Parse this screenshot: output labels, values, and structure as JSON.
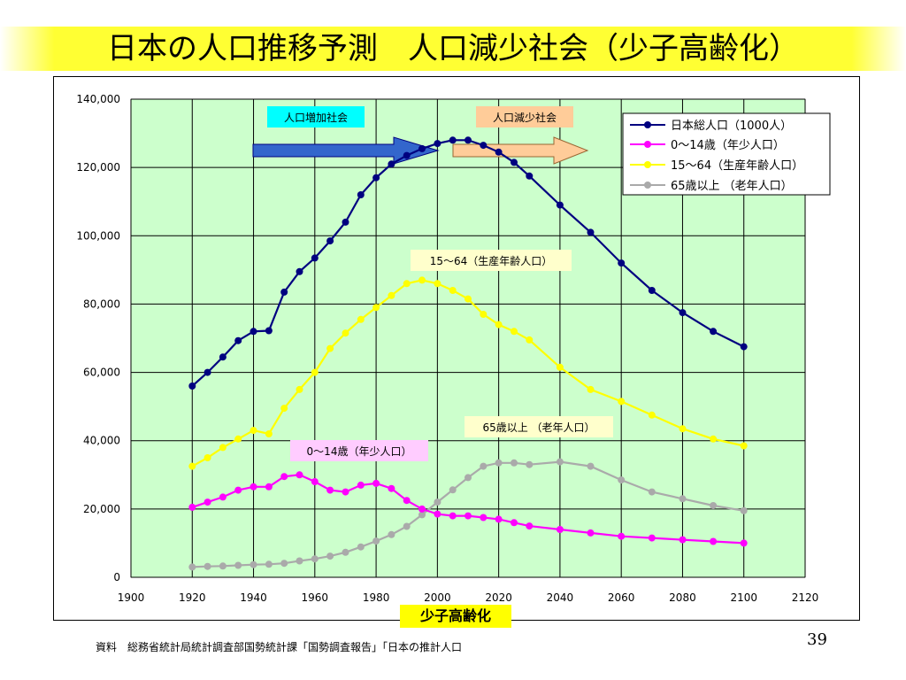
{
  "slide": {
    "title": "日本の人口推移予測　人口減少社会（少子高齢化）",
    "footer_tag": "少子高齢化",
    "source": "資料　総務省統計局統計調査部国勢統計課「国勢調査報告」「日本の推計人口",
    "page_number": "39"
  },
  "colors": {
    "plot_bg": "#ccffcc",
    "total": "#000080",
    "child": "#ff00ff",
    "working": "#ffff00",
    "elderly": "#aaaaaa",
    "title_band": "#ffff33"
  },
  "chart_data": {
    "type": "line",
    "xlim": [
      1900,
      2120
    ],
    "ylim": [
      0,
      140000
    ],
    "grid": true,
    "legend_position": "top-right",
    "x_ticks": [
      "1900",
      "1920",
      "1940",
      "1960",
      "1980",
      "2000",
      "2020",
      "2040",
      "2060",
      "2080",
      "2100",
      "2120"
    ],
    "y_ticks": [
      "0",
      "20,000",
      "40,000",
      "60,000",
      "80,000",
      "100,000",
      "120,000",
      "140,000"
    ],
    "series": [
      {
        "key": "total",
        "name": "日本総人口（1000人）",
        "x": [
          1920,
          1925,
          1930,
          1935,
          1940,
          1945,
          1950,
          1955,
          1960,
          1965,
          1970,
          1975,
          1980,
          1985,
          1990,
          1995,
          2000,
          2005,
          2010,
          2015,
          2020,
          2025,
          2030,
          2040,
          2050,
          2060,
          2070,
          2080,
          2090,
          2100
        ],
        "y": [
          56000,
          60000,
          64500,
          69300,
          72000,
          72200,
          83500,
          89500,
          93500,
          98500,
          104000,
          112000,
          117000,
          121000,
          123500,
          125500,
          127000,
          128000,
          128000,
          126500,
          124500,
          121500,
          117500,
          109000,
          101000,
          92000,
          84000,
          77500,
          72000,
          67500
        ]
      },
      {
        "key": "child",
        "name": "0～14歳（年少人口）",
        "x": [
          1920,
          1925,
          1930,
          1935,
          1940,
          1945,
          1950,
          1955,
          1960,
          1965,
          1970,
          1975,
          1980,
          1985,
          1990,
          1995,
          2000,
          2005,
          2010,
          2015,
          2020,
          2025,
          2030,
          2040,
          2050,
          2060,
          2070,
          2080,
          2090,
          2100
        ],
        "y": [
          20500,
          22000,
          23500,
          25500,
          26500,
          26500,
          29500,
          30000,
          28000,
          25500,
          25000,
          27000,
          27500,
          26000,
          22500,
          20000,
          18500,
          18000,
          18000,
          17500,
          17000,
          16000,
          15000,
          14000,
          13000,
          12000,
          11500,
          11000,
          10500,
          10000
        ]
      },
      {
        "key": "working",
        "name": "15～64（生産年齢人口）",
        "x": [
          1920,
          1925,
          1930,
          1935,
          1940,
          1945,
          1950,
          1955,
          1960,
          1965,
          1970,
          1975,
          1980,
          1985,
          1990,
          1995,
          2000,
          2005,
          2010,
          2015,
          2020,
          2025,
          2030,
          2040,
          2050,
          2060,
          2070,
          2080,
          2090,
          2100
        ],
        "y": [
          32500,
          35000,
          38000,
          40500,
          43000,
          42000,
          49500,
          55000,
          60000,
          67000,
          71500,
          75500,
          79000,
          82500,
          86000,
          87000,
          86000,
          84000,
          81500,
          77000,
          74000,
          72000,
          69500,
          61500,
          55000,
          51500,
          47500,
          43500,
          40500,
          38500
        ]
      },
      {
        "key": "elderly",
        "name": "65歳以上（老年人口）",
        "x": [
          1920,
          1925,
          1930,
          1935,
          1940,
          1945,
          1950,
          1955,
          1960,
          1965,
          1970,
          1975,
          1980,
          1985,
          1990,
          1995,
          2000,
          2005,
          2010,
          2015,
          2020,
          2025,
          2030,
          2040,
          2050,
          2060,
          2070,
          2080,
          2090,
          2100
        ],
        "y": [
          3000,
          3200,
          3300,
          3500,
          3700,
          3800,
          4100,
          4800,
          5400,
          6200,
          7300,
          8900,
          10600,
          12500,
          14900,
          18300,
          22000,
          25600,
          29200,
          32500,
          33500,
          33500,
          33000,
          33800,
          32500,
          28500,
          25000,
          23000,
          21000,
          19500
        ]
      }
    ],
    "legend": [
      "日本総人口（1000人）",
      "0～14歳（年少人口）",
      "15～64（生産年齢人口）",
      "65歳以上 （老年人口）"
    ],
    "annotations": {
      "increase_label": "人口増加社会",
      "decrease_label": "人口減少社会",
      "working_label": "15～64（生産年齢人口）",
      "elderly_label": "65歳以上 （老年人口）",
      "child_label": "0～14歳（年少人口）"
    }
  }
}
